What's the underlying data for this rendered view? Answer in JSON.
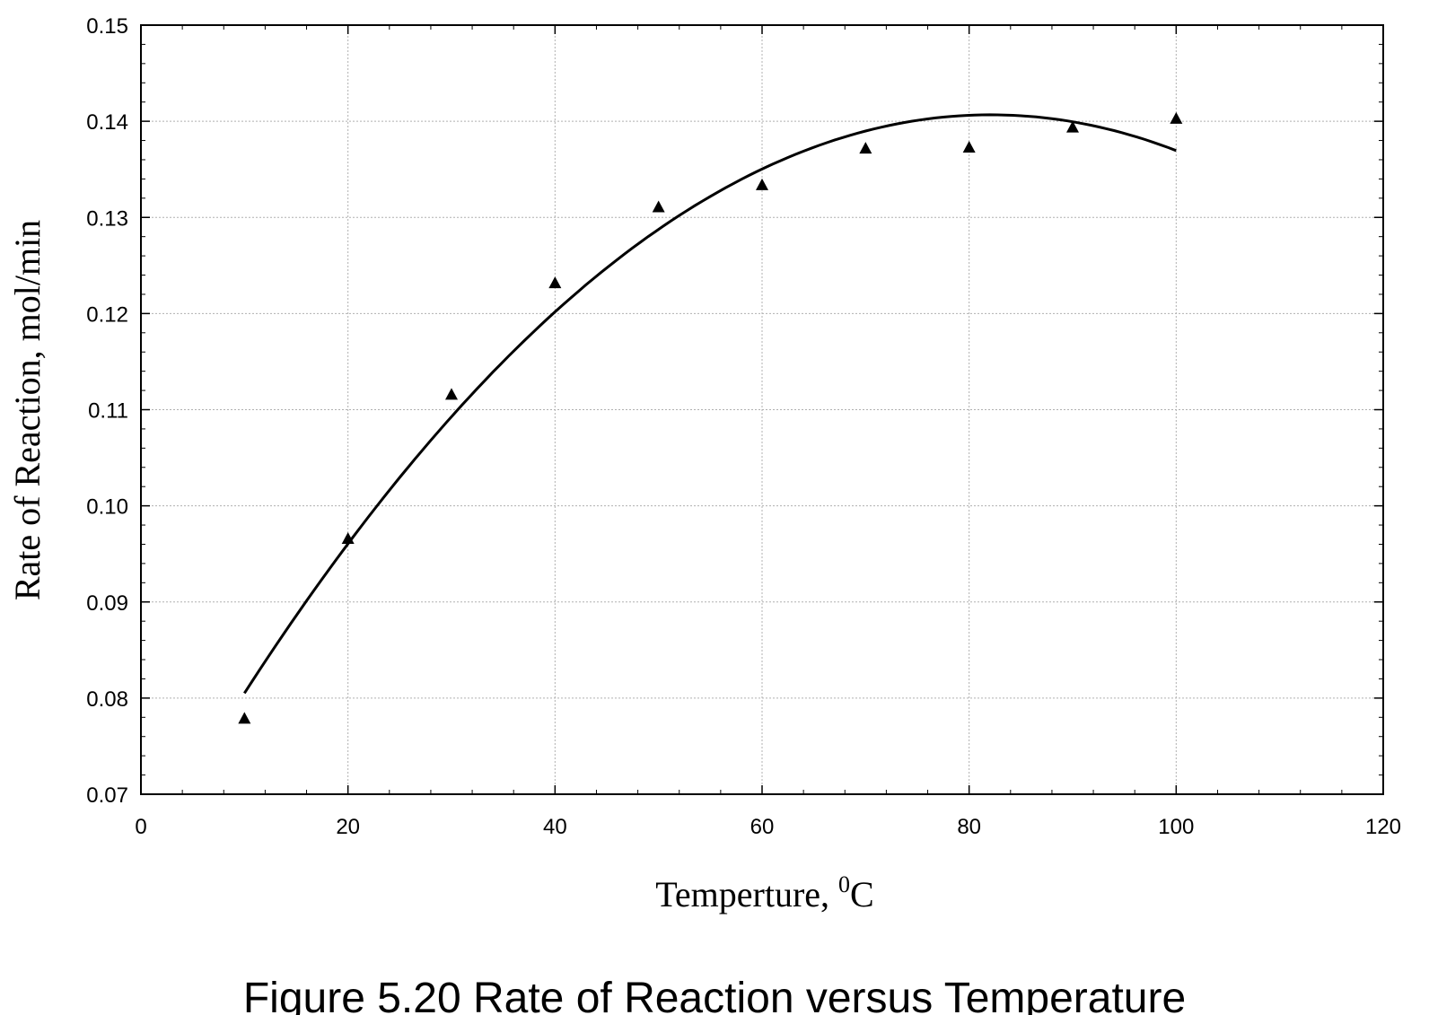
{
  "chart_data": {
    "type": "scatter",
    "title": "",
    "caption": "Figure 5.20 Rate of Reaction versus Temperature",
    "xlabel_main": "Temperture, ",
    "xlabel_sup": "0",
    "xlabel_unit": "C",
    "ylabel": "Rate of Reaction, mol/min",
    "xlim": [
      0,
      120
    ],
    "ylim": [
      0.07,
      0.15
    ],
    "x_ticks": [
      "0",
      "20",
      "40",
      "60",
      "80",
      "100",
      "120"
    ],
    "y_ticks": [
      "0.07",
      "0.08",
      "0.09",
      "0.10",
      "0.11",
      "0.12",
      "0.13",
      "0.14",
      "0.15"
    ],
    "grid": true,
    "legend": "none",
    "series": [
      {
        "kind": "scatter",
        "marker": "triangle",
        "color": "#000000",
        "x": [
          10,
          20,
          30,
          40,
          50,
          60,
          70,
          80,
          90,
          100
        ],
        "y": [
          0.0778,
          0.0965,
          0.1115,
          0.1231,
          0.131,
          0.1333,
          0.1371,
          0.1372,
          0.1393,
          0.1402
        ]
      },
      {
        "kind": "line",
        "fit": "quadratic",
        "color": "#000000",
        "x": [
          10,
          20,
          30,
          40,
          50,
          60,
          70,
          80,
          90,
          100
        ],
        "y": [
          0.0806,
          0.096,
          0.1092,
          0.1201,
          0.1288,
          0.1351,
          0.139,
          0.1406,
          0.14,
          0.1369
        ]
      }
    ]
  }
}
